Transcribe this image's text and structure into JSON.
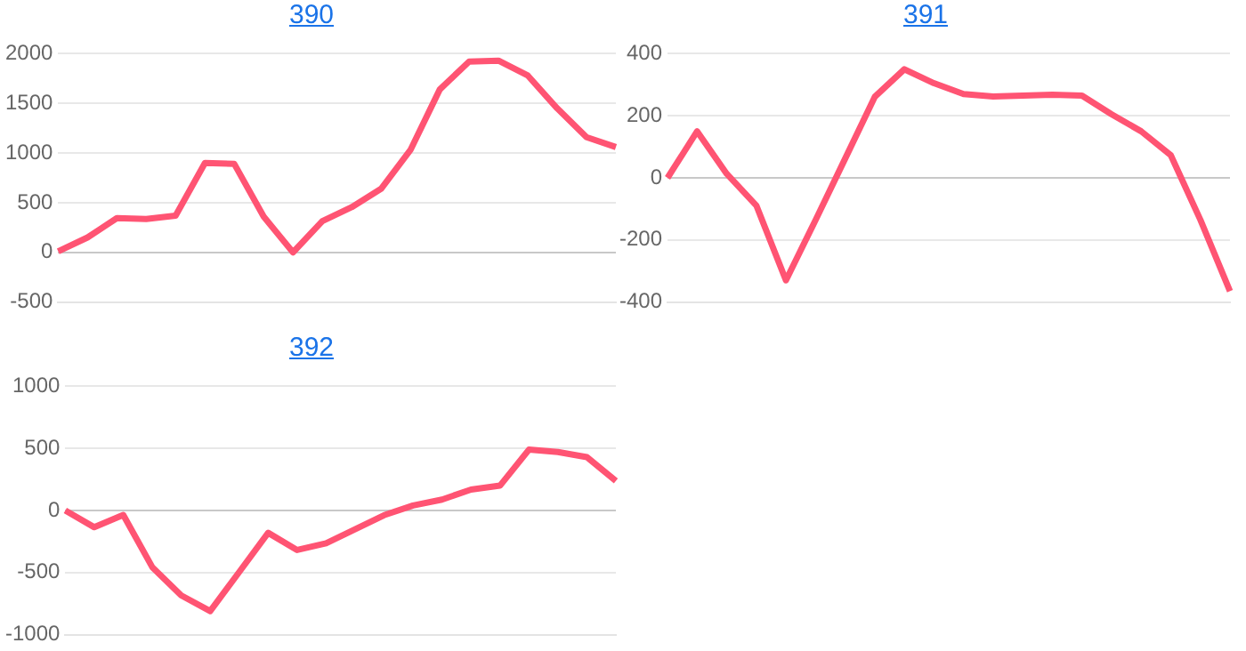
{
  "chart_data": [
    {
      "type": "line",
      "title": "390",
      "categories": [
        null,
        null,
        null,
        null,
        null,
        null,
        null,
        null,
        null,
        null,
        null,
        null,
        null,
        null,
        null,
        null,
        null,
        null,
        null,
        null
      ],
      "series": [
        {
          "color": "#ff5473",
          "values": [
            10,
            150,
            345,
            335,
            370,
            900,
            890,
            360,
            0,
            315,
            455,
            640,
            1030,
            1640,
            1920,
            1930,
            1780,
            1450,
            1160,
            1060
          ]
        }
      ],
      "ylim": [
        -500,
        2000
      ],
      "yticks": [
        -500,
        0,
        500,
        1000,
        1500,
        2000
      ],
      "grid": "y",
      "tick_labels": "y",
      "marker": "none",
      "line_style": "solid"
    },
    {
      "type": "line",
      "title": "391",
      "categories": [
        null,
        null,
        null,
        null,
        null,
        null,
        null,
        null,
        null,
        null,
        null,
        null,
        null,
        null,
        null,
        null,
        null,
        null,
        null,
        null
      ],
      "series": [
        {
          "color": "#ff5473",
          "values": [
            0,
            150,
            13,
            -89,
            -330,
            -136,
            62,
            261,
            350,
            305,
            270,
            262,
            265,
            268,
            265,
            205,
            150,
            73,
            -135,
            -365
          ]
        }
      ],
      "ylim": [
        -400,
        400
      ],
      "yticks": [
        -400,
        -200,
        0,
        200,
        400
      ],
      "grid": "y",
      "tick_labels": "y",
      "marker": "none",
      "line_style": "solid"
    },
    {
      "type": "line",
      "title": "392",
      "categories": [
        null,
        null,
        null,
        null,
        null,
        null,
        null,
        null,
        null,
        null,
        null,
        null,
        null,
        null,
        null,
        null,
        null,
        null,
        null,
        null
      ],
      "series": [
        {
          "color": "#ff5473",
          "values": [
            0,
            -135,
            -36,
            -456,
            -684,
            -810,
            -496,
            -180,
            -318,
            -264,
            -152,
            -38,
            40,
            88,
            168,
            200,
            490,
            471,
            430,
            238
          ]
        }
      ],
      "ylim": [
        -1000,
        1000
      ],
      "yticks": [
        -1000,
        -500,
        0,
        500,
        1000
      ],
      "grid": "y",
      "tick_labels": "y",
      "marker": "none",
      "line_style": "solid"
    }
  ]
}
